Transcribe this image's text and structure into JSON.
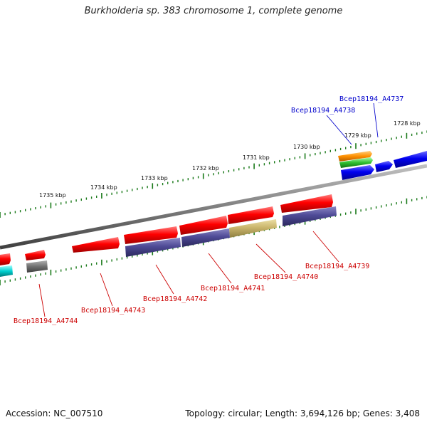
{
  "title": "Burkholderia sp. 383 chromosome 1, complete genome",
  "footer": {
    "accession": "Accession: NC_007510",
    "topology": "Topology: circular; Length: 3,694,126 bp; Genes: 3,408"
  },
  "colors": {
    "backbone": "#808080",
    "tick": "#1a7a1a",
    "label_red": "#cc0000",
    "label_blue": "#0000cc"
  },
  "scale_labels": [
    "1735 kbp",
    "1734 kbp",
    "1733 kbp",
    "1732 kbp",
    "1731 kbp",
    "1730 kbp",
    "1729 kbp",
    "1728 kbp"
  ],
  "genes": [
    {
      "label": "Bcep18194_A4737",
      "color": "blue"
    },
    {
      "label": "Bcep18194_A4738",
      "color": "blue"
    },
    {
      "label": "Bcep18194_A4739",
      "color": "red"
    },
    {
      "label": "Bcep18194_A4740",
      "color": "red"
    },
    {
      "label": "Bcep18194_A4741",
      "color": "red"
    },
    {
      "label": "Bcep18194_A4742",
      "color": "red"
    },
    {
      "label": "Bcep18194_A4743",
      "color": "red"
    },
    {
      "label": "Bcep18194_A4744",
      "color": "red"
    }
  ]
}
